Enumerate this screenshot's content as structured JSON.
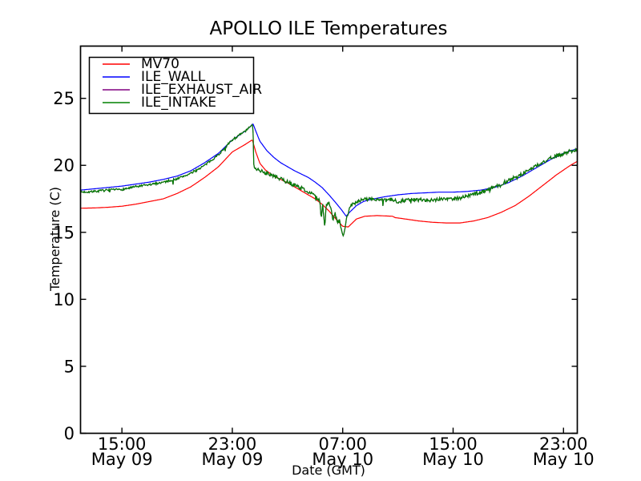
{
  "figure": {
    "background": "#ffffff",
    "axes_color": "#000000"
  },
  "chart_data": {
    "type": "line",
    "title": "APOLLO ILE Temperatures",
    "xlabel": "Date (GMT)",
    "ylabel": "Temperature (C)",
    "grid": false,
    "legend_position": "upper left",
    "ylim": [
      0,
      28.9
    ],
    "y_ticks": [
      0,
      5,
      10,
      15,
      20,
      25
    ],
    "x_axis_encoding": "t = hours after May 09 12:00 GMT, x range 0-36",
    "x_ticks": [
      {
        "t": 3,
        "time": "15:00",
        "date": "May 09"
      },
      {
        "t": 11,
        "time": "23:00",
        "date": "May 09"
      },
      {
        "t": 19,
        "time": "07:00",
        "date": "May 10"
      },
      {
        "t": 27,
        "time": "15:00",
        "date": "May 10"
      },
      {
        "t": 35,
        "time": "23:00",
        "date": "May 10"
      }
    ],
    "series": [
      {
        "name": "MV70",
        "color": "#ff0000",
        "noise": 0,
        "points": [
          [
            0,
            16.8
          ],
          [
            1,
            16.82
          ],
          [
            2,
            16.87
          ],
          [
            3,
            16.95
          ],
          [
            4,
            17.1
          ],
          [
            5,
            17.3
          ],
          [
            6,
            17.5
          ],
          [
            7,
            17.9
          ],
          [
            8,
            18.4
          ],
          [
            9,
            19.1
          ],
          [
            10,
            19.9
          ],
          [
            11,
            21.0
          ],
          [
            12,
            21.6
          ],
          [
            12.45,
            21.9
          ],
          [
            12.7,
            21.0
          ],
          [
            13,
            20.15
          ],
          [
            13.4,
            19.65
          ],
          [
            14,
            19.2
          ],
          [
            15,
            18.7
          ],
          [
            16,
            18.1
          ],
          [
            16.5,
            17.8
          ],
          [
            17,
            17.5
          ],
          [
            17.5,
            17.1
          ],
          [
            18,
            16.6
          ],
          [
            18.5,
            16.0
          ],
          [
            19,
            15.45
          ],
          [
            19.4,
            15.4
          ],
          [
            20,
            16.0
          ],
          [
            20.6,
            16.2
          ],
          [
            21.5,
            16.25
          ],
          [
            22.6,
            16.2
          ],
          [
            22.8,
            16.1
          ],
          [
            23.5,
            16.0
          ],
          [
            24.5,
            15.85
          ],
          [
            25.5,
            15.75
          ],
          [
            26.5,
            15.7
          ],
          [
            27.5,
            15.7
          ],
          [
            28.5,
            15.85
          ],
          [
            29.5,
            16.1
          ],
          [
            30.5,
            16.5
          ],
          [
            31.5,
            17.0
          ],
          [
            32.5,
            17.7
          ],
          [
            33.5,
            18.5
          ],
          [
            34.5,
            19.3
          ],
          [
            35.5,
            20.0
          ],
          [
            36,
            20.3
          ]
        ]
      },
      {
        "name": "ILE_WALL",
        "color": "#0000ff",
        "noise": 0,
        "points": [
          [
            0,
            18.15
          ],
          [
            1,
            18.25
          ],
          [
            2,
            18.35
          ],
          [
            3,
            18.45
          ],
          [
            4,
            18.6
          ],
          [
            5,
            18.75
          ],
          [
            6,
            18.95
          ],
          [
            7,
            19.2
          ],
          [
            8,
            19.6
          ],
          [
            9,
            20.2
          ],
          [
            10,
            20.9
          ],
          [
            11,
            21.9
          ],
          [
            12,
            22.6
          ],
          [
            12.5,
            23.1
          ],
          [
            12.8,
            22.3
          ],
          [
            13,
            21.8
          ],
          [
            13.5,
            21.1
          ],
          [
            14,
            20.6
          ],
          [
            14.5,
            20.2
          ],
          [
            15,
            19.9
          ],
          [
            15.5,
            19.6
          ],
          [
            16,
            19.35
          ],
          [
            16.5,
            19.1
          ],
          [
            17,
            18.75
          ],
          [
            17.5,
            18.35
          ],
          [
            18,
            17.8
          ],
          [
            18.5,
            17.2
          ],
          [
            18.9,
            16.7
          ],
          [
            19.25,
            16.2
          ],
          [
            19.5,
            16.5
          ],
          [
            20,
            17.0
          ],
          [
            20.5,
            17.3
          ],
          [
            21,
            17.45
          ],
          [
            22,
            17.65
          ],
          [
            23,
            17.8
          ],
          [
            24,
            17.9
          ],
          [
            25,
            17.95
          ],
          [
            26,
            18.0
          ],
          [
            27,
            18.0
          ],
          [
            28,
            18.05
          ],
          [
            29,
            18.15
          ],
          [
            30,
            18.35
          ],
          [
            31,
            18.7
          ],
          [
            32,
            19.2
          ],
          [
            33,
            19.8
          ],
          [
            34,
            20.4
          ],
          [
            35,
            20.9
          ],
          [
            36,
            21.25
          ]
        ]
      },
      {
        "name": "ILE_EXHAUST_AIR",
        "color": "#800080",
        "noise": 0.11,
        "overlaps_intake": true,
        "points": [
          [
            0,
            18.0
          ],
          [
            1,
            18.05
          ],
          [
            2,
            18.15
          ],
          [
            3,
            18.2
          ],
          [
            4,
            18.4
          ],
          [
            5,
            18.55
          ],
          [
            6,
            18.75
          ],
          [
            7,
            19.0
          ],
          [
            8,
            19.4
          ],
          [
            9,
            20.0
          ],
          [
            10,
            20.8
          ],
          [
            11,
            21.9
          ],
          [
            12,
            22.6
          ],
          [
            12.5,
            23.05
          ],
          [
            12.56,
            19.9
          ],
          [
            13,
            19.6
          ],
          [
            14,
            19.2
          ],
          [
            15,
            18.75
          ],
          [
            16,
            18.3
          ],
          [
            16.5,
            18.05
          ],
          [
            17,
            17.7
          ],
          [
            17.35,
            17.3
          ],
          [
            17.45,
            16.0
          ],
          [
            17.55,
            17.2
          ],
          [
            17.7,
            15.3
          ],
          [
            17.8,
            17.1
          ],
          [
            18,
            17.2
          ],
          [
            18.15,
            16.9
          ],
          [
            18.3,
            15.8
          ],
          [
            18.45,
            16.6
          ],
          [
            18.6,
            15.6
          ],
          [
            18.75,
            15.9
          ],
          [
            18.9,
            15.2
          ],
          [
            19.05,
            14.55
          ],
          [
            19.3,
            16.2
          ],
          [
            19.6,
            17.0
          ],
          [
            20,
            17.3
          ],
          [
            20.5,
            17.45
          ],
          [
            21,
            17.5
          ],
          [
            21.5,
            17.45
          ],
          [
            22,
            17.35
          ],
          [
            22.5,
            17.45
          ],
          [
            23,
            17.3
          ],
          [
            23.5,
            17.4
          ],
          [
            24,
            17.45
          ],
          [
            24.5,
            17.4
          ],
          [
            25,
            17.45
          ],
          [
            25.5,
            17.4
          ],
          [
            26,
            17.5
          ],
          [
            26.7,
            17.5
          ],
          [
            27.4,
            17.55
          ],
          [
            28,
            17.7
          ],
          [
            29,
            18.0
          ],
          [
            30,
            18.4
          ],
          [
            31,
            18.85
          ],
          [
            32,
            19.35
          ],
          [
            33,
            19.95
          ],
          [
            34,
            20.5
          ],
          [
            35,
            20.9
          ],
          [
            36,
            21.2
          ]
        ]
      },
      {
        "name": "ILE_INTAKE",
        "color": "#008000",
        "noise": 0.11,
        "points": [
          [
            0,
            18.0
          ],
          [
            1,
            18.05
          ],
          [
            2,
            18.15
          ],
          [
            3,
            18.2
          ],
          [
            4,
            18.4
          ],
          [
            5,
            18.55
          ],
          [
            6,
            18.75
          ],
          [
            7,
            19.0
          ],
          [
            8,
            19.4
          ],
          [
            9,
            20.0
          ],
          [
            10,
            20.8
          ],
          [
            11,
            21.9
          ],
          [
            12,
            22.6
          ],
          [
            12.5,
            23.05
          ],
          [
            12.56,
            19.9
          ],
          [
            13,
            19.6
          ],
          [
            14,
            19.2
          ],
          [
            15,
            18.75
          ],
          [
            16,
            18.3
          ],
          [
            16.5,
            18.05
          ],
          [
            17,
            17.7
          ],
          [
            17.35,
            17.3
          ],
          [
            17.45,
            16.0
          ],
          [
            17.55,
            17.2
          ],
          [
            17.7,
            15.3
          ],
          [
            17.8,
            17.1
          ],
          [
            18,
            17.2
          ],
          [
            18.15,
            16.9
          ],
          [
            18.3,
            15.8
          ],
          [
            18.45,
            16.6
          ],
          [
            18.6,
            15.6
          ],
          [
            18.75,
            15.9
          ],
          [
            18.9,
            15.2
          ],
          [
            19.05,
            14.55
          ],
          [
            19.3,
            16.2
          ],
          [
            19.6,
            17.0
          ],
          [
            20,
            17.3
          ],
          [
            20.5,
            17.45
          ],
          [
            21,
            17.5
          ],
          [
            21.5,
            17.45
          ],
          [
            22,
            17.35
          ],
          [
            22.5,
            17.45
          ],
          [
            23,
            17.3
          ],
          [
            23.5,
            17.4
          ],
          [
            24,
            17.45
          ],
          [
            24.5,
            17.4
          ],
          [
            25,
            17.45
          ],
          [
            25.5,
            17.4
          ],
          [
            26,
            17.5
          ],
          [
            26.7,
            17.5
          ],
          [
            27.4,
            17.55
          ],
          [
            28,
            17.7
          ],
          [
            29,
            18.0
          ],
          [
            30,
            18.4
          ],
          [
            31,
            18.85
          ],
          [
            32,
            19.35
          ],
          [
            33,
            19.95
          ],
          [
            34,
            20.5
          ],
          [
            35,
            20.9
          ],
          [
            36,
            21.2
          ]
        ]
      }
    ]
  }
}
